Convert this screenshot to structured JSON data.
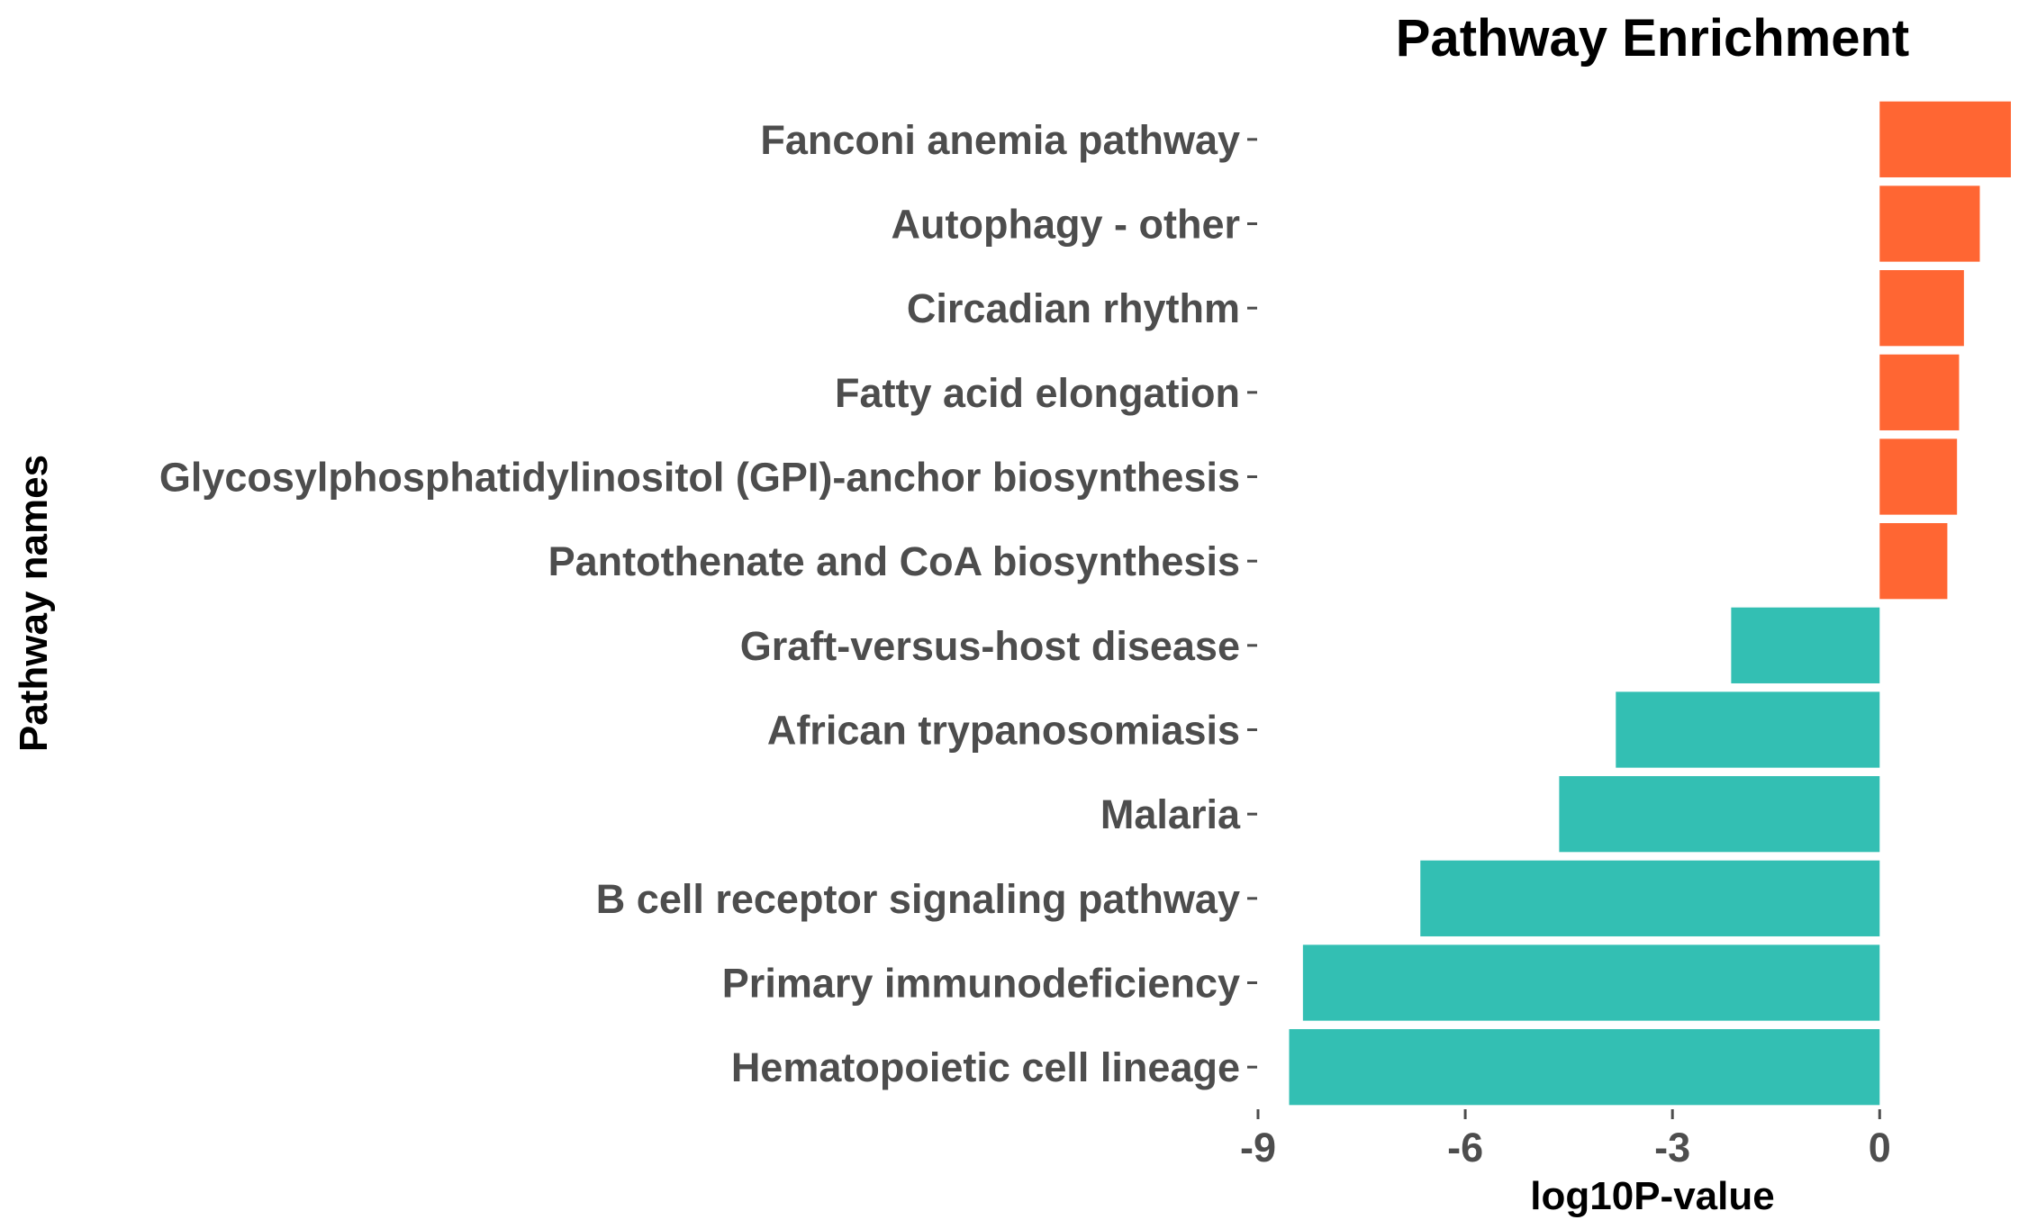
{
  "chart_data": {
    "type": "bar",
    "orientation": "horizontal",
    "title": "Pathway Enrichment",
    "xlabel": "log10P-value",
    "ylabel": "Pathway names",
    "xlim": [
      -9,
      1.9
    ],
    "xticks": [
      -9,
      -6,
      -3,
      0
    ],
    "grid": false,
    "legend": "none",
    "colors": {
      "positive": "#FF6633",
      "negative": "#33BFB3"
    },
    "categories": [
      "Fanconi anemia pathway",
      "Autophagy - other",
      "Circadian rhythm",
      "Fatty acid elongation",
      "Glycosylphosphatidylinositol (GPI)-anchor biosynthesis",
      "Pantothenate and CoA biosynthesis",
      "Graft-versus-host disease",
      "African trypanosomiasis",
      "Malaria",
      "B cell receptor signaling pathway",
      "Primary immunodeficiency",
      "Hematopoietic cell lineage"
    ],
    "values": [
      1.9,
      1.45,
      1.22,
      1.15,
      1.12,
      0.98,
      -2.15,
      -3.82,
      -4.64,
      -6.65,
      -8.35,
      -8.55
    ]
  }
}
